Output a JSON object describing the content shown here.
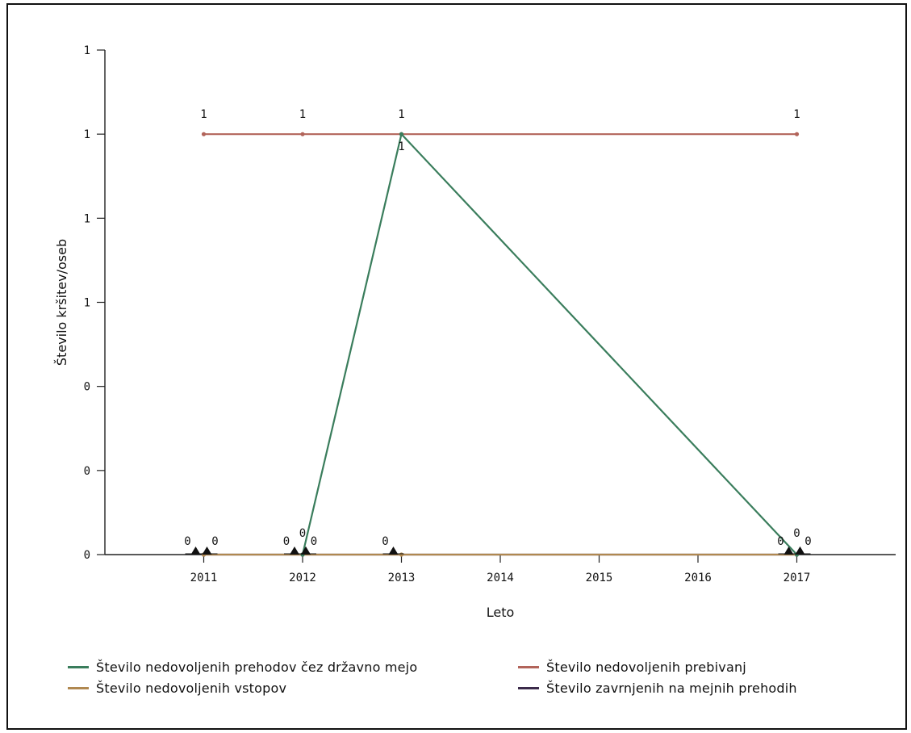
{
  "chart_data": {
    "type": "line",
    "xlabel": "Leto",
    "ylabel": "Število kršitev/oseb",
    "x_ticks": [
      "2011",
      "2012",
      "2013",
      "2014",
      "2015",
      "2016",
      "2017"
    ],
    "y_ticks": [
      "0",
      "0",
      "0",
      "1",
      "1",
      "1",
      "1"
    ],
    "xlim": [
      2010,
      2018
    ],
    "ylim": [
      0,
      1.2
    ],
    "legend_position": "bottom",
    "series": [
      {
        "name": "Število nedovoljenih prehodov čez državno mejo",
        "color": "#3a7d5c",
        "points": [
          [
            2012,
            0
          ],
          [
            2013,
            1
          ],
          [
            2017,
            0
          ]
        ],
        "labels": [
          "0",
          "1",
          "0"
        ]
      },
      {
        "name": "Število nedovoljenih prebivanj",
        "color": "#b2645a",
        "points": [
          [
            2011,
            1
          ],
          [
            2012,
            1
          ],
          [
            2013,
            1
          ],
          [
            2017,
            1
          ]
        ],
        "labels": [
          "1",
          "1",
          "1",
          "1"
        ]
      },
      {
        "name": "Število nedovoljenih vstopov",
        "color": "#b08850",
        "points": [
          [
            2011,
            0
          ],
          [
            2012,
            0
          ],
          [
            2013,
            0
          ],
          [
            2017,
            0
          ]
        ],
        "labels": [
          "0",
          "0",
          "0",
          "0"
        ]
      },
      {
        "name": "Število zavrnjenih na mejnih prehodih",
        "color": "#3b2a4a",
        "points": [
          [
            2011,
            0
          ],
          [
            2012,
            0
          ],
          [
            2017,
            0
          ]
        ],
        "labels": [
          "0",
          "0",
          "0"
        ]
      }
    ]
  },
  "legend": {
    "items": [
      {
        "label": "Število nedovoljenih prehodov čez državno mejo",
        "color": "#3a7d5c"
      },
      {
        "label": "Število nedovoljenih prebivanj",
        "color": "#b2645a"
      },
      {
        "label": "Število nedovoljenih vstopov",
        "color": "#b08850"
      },
      {
        "label": "Število zavrnjenih na mejnih prehodih",
        "color": "#3b2a4a"
      }
    ]
  }
}
